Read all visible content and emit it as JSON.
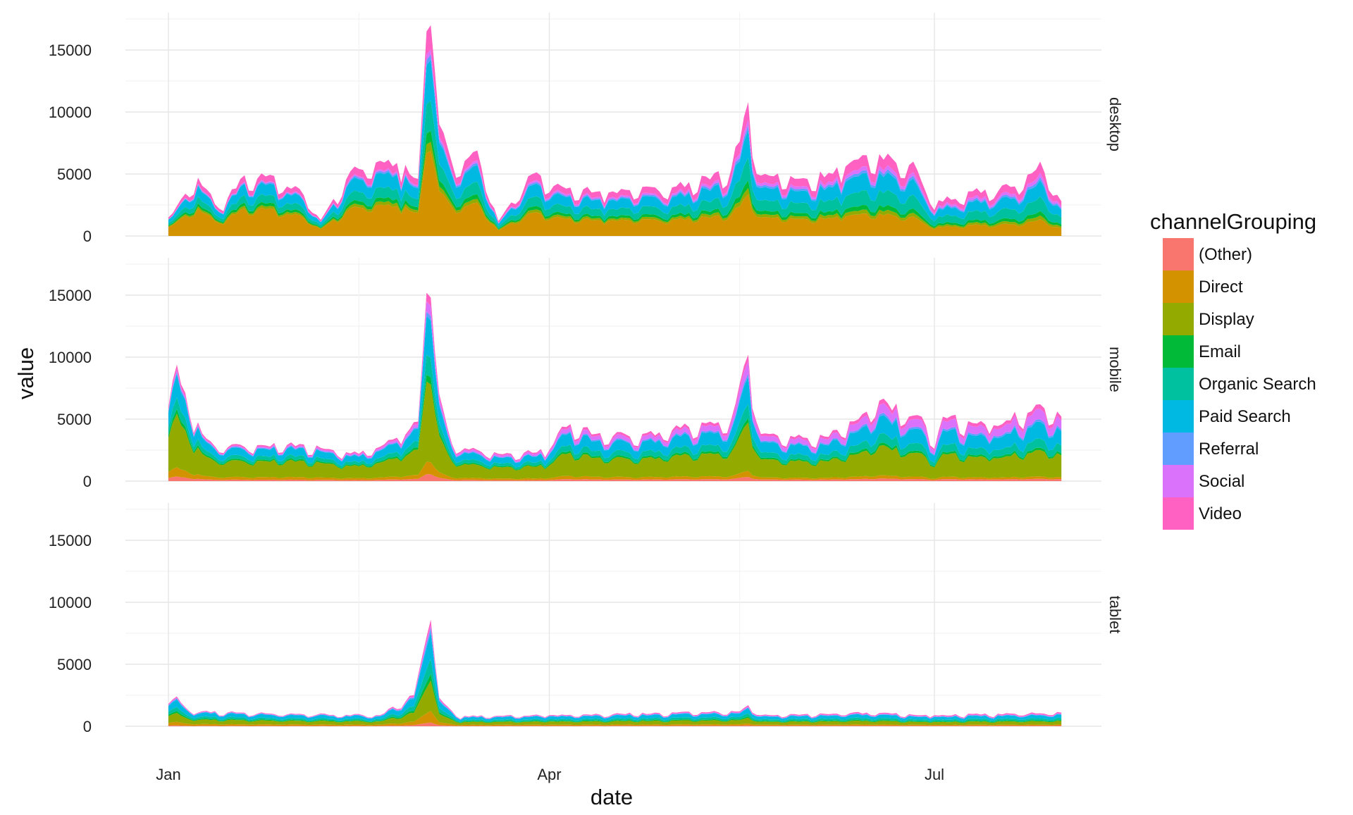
{
  "chart_data": {
    "type": "area",
    "stacked": true,
    "faceted": true,
    "xlabel": "date",
    "ylabel": "value",
    "x_ticks": [
      "Jan",
      "Apr",
      "Jul"
    ],
    "x_range": [
      "2017-01-01",
      "2017-08-01"
    ],
    "y_ticks": [
      0,
      5000,
      10000,
      15000
    ],
    "ylim": [
      0,
      17500
    ],
    "grid": true,
    "legend": {
      "title": "channelGrouping",
      "position": "right"
    },
    "series_colors": {
      "(Other)": "#F8766D",
      "Direct": "#D39200",
      "Display": "#93AA00",
      "Email": "#00BA38",
      "Organic Search": "#00C19F",
      "Paid Search": "#00B9E3",
      "Referral": "#619CFF",
      "Social": "#DB72FB",
      "Video": "#FF61C3"
    },
    "facets": [
      {
        "name": "desktop",
        "keypoints": [
          {
            "x": "2017-01-01",
            "total": 1500
          },
          {
            "x": "2017-01-08",
            "total": 4700
          },
          {
            "x": "2017-01-13",
            "total": 2200
          },
          {
            "x": "2017-01-18",
            "total": 4600
          },
          {
            "x": "2017-01-24",
            "total": 4800
          },
          {
            "x": "2017-02-01",
            "total": 3800
          },
          {
            "x": "2017-02-06",
            "total": 1300
          },
          {
            "x": "2017-02-14",
            "total": 5600
          },
          {
            "x": "2017-02-24",
            "total": 5900
          },
          {
            "x": "2017-03-01",
            "total": 4600
          },
          {
            "x": "2017-03-03",
            "total": 16500
          },
          {
            "x": "2017-03-04",
            "total": 17000
          },
          {
            "x": "2017-03-06",
            "total": 9000
          },
          {
            "x": "2017-03-09",
            "total": 5900
          },
          {
            "x": "2017-03-15",
            "total": 6900
          },
          {
            "x": "2017-03-20",
            "total": 1200
          },
          {
            "x": "2017-03-28",
            "total": 5000
          },
          {
            "x": "2017-04-04",
            "total": 4000
          },
          {
            "x": "2017-04-15",
            "total": 3500
          },
          {
            "x": "2017-05-01",
            "total": 4000
          },
          {
            "x": "2017-05-14",
            "total": 5400
          },
          {
            "x": "2017-05-18",
            "total": 10800
          },
          {
            "x": "2017-05-20",
            "total": 5000
          },
          {
            "x": "2017-06-01",
            "total": 4600
          },
          {
            "x": "2017-06-10",
            "total": 5600
          },
          {
            "x": "2017-06-18",
            "total": 6600
          },
          {
            "x": "2017-06-26",
            "total": 6000
          },
          {
            "x": "2017-06-30",
            "total": 2600
          },
          {
            "x": "2017-07-10",
            "total": 3600
          },
          {
            "x": "2017-07-20",
            "total": 4000
          },
          {
            "x": "2017-07-26",
            "total": 6000
          },
          {
            "x": "2017-07-31",
            "total": 2800
          }
        ],
        "mix_start": [
          0,
          48,
          4,
          5,
          12,
          18,
          2,
          1,
          10
        ],
        "mix_end": [
          0,
          22,
          5,
          6,
          20,
          22,
          4,
          6,
          15
        ]
      },
      {
        "name": "mobile",
        "keypoints": [
          {
            "x": "2017-01-01",
            "total": 6000
          },
          {
            "x": "2017-01-03",
            "total": 9400
          },
          {
            "x": "2017-01-06",
            "total": 5300
          },
          {
            "x": "2017-01-12",
            "total": 2800
          },
          {
            "x": "2017-02-01",
            "total": 3000
          },
          {
            "x": "2017-02-15",
            "total": 2200
          },
          {
            "x": "2017-02-24",
            "total": 3500
          },
          {
            "x": "2017-03-01",
            "total": 4800
          },
          {
            "x": "2017-03-03",
            "total": 15200
          },
          {
            "x": "2017-03-04",
            "total": 14800
          },
          {
            "x": "2017-03-06",
            "total": 7000
          },
          {
            "x": "2017-03-09",
            "total": 3000
          },
          {
            "x": "2017-03-20",
            "total": 2200
          },
          {
            "x": "2017-04-01",
            "total": 2500
          },
          {
            "x": "2017-04-04",
            "total": 4400
          },
          {
            "x": "2017-04-20",
            "total": 3600
          },
          {
            "x": "2017-05-14",
            "total": 5000
          },
          {
            "x": "2017-05-18",
            "total": 10200
          },
          {
            "x": "2017-05-21",
            "total": 3800
          },
          {
            "x": "2017-06-05",
            "total": 3600
          },
          {
            "x": "2017-06-15",
            "total": 5600
          },
          {
            "x": "2017-06-18",
            "total": 6500
          },
          {
            "x": "2017-06-28",
            "total": 5200
          },
          {
            "x": "2017-07-01",
            "total": 2600
          },
          {
            "x": "2017-07-03",
            "total": 5200
          },
          {
            "x": "2017-07-15",
            "total": 4500
          },
          {
            "x": "2017-07-26",
            "total": 6200
          },
          {
            "x": "2017-07-31",
            "total": 5200
          }
        ],
        "mix_start": [
          4,
          8,
          46,
          4,
          10,
          20,
          2,
          2,
          4
        ],
        "mix_end": [
          3,
          3,
          34,
          3,
          12,
          22,
          3,
          14,
          6
        ]
      },
      {
        "name": "tablet",
        "keypoints": [
          {
            "x": "2017-01-01",
            "total": 1800
          },
          {
            "x": "2017-01-03",
            "total": 2400
          },
          {
            "x": "2017-01-06",
            "total": 1200
          },
          {
            "x": "2017-02-01",
            "total": 1000
          },
          {
            "x": "2017-02-20",
            "total": 900
          },
          {
            "x": "2017-02-28",
            "total": 2500
          },
          {
            "x": "2017-03-03",
            "total": 7200
          },
          {
            "x": "2017-03-04",
            "total": 8600
          },
          {
            "x": "2017-03-06",
            "total": 2300
          },
          {
            "x": "2017-03-10",
            "total": 800
          },
          {
            "x": "2017-04-01",
            "total": 900
          },
          {
            "x": "2017-05-16",
            "total": 1200
          },
          {
            "x": "2017-05-18",
            "total": 1700
          },
          {
            "x": "2017-05-21",
            "total": 900
          },
          {
            "x": "2017-06-15",
            "total": 1100
          },
          {
            "x": "2017-07-01",
            "total": 900
          },
          {
            "x": "2017-07-31",
            "total": 1100
          }
        ],
        "mix_start": [
          3,
          12,
          30,
          6,
          14,
          25,
          4,
          2,
          4
        ],
        "mix_end": [
          5,
          8,
          25,
          6,
          16,
          24,
          4,
          4,
          8
        ]
      }
    ]
  },
  "texts": {
    "ylabel": "value",
    "xlabel": "date",
    "legend_title": "channelGrouping",
    "series_names": [
      "(Other)",
      "Direct",
      "Display",
      "Email",
      "Organic Search",
      "Paid Search",
      "Referral",
      "Social",
      "Video"
    ],
    "x_tick_labels": [
      "Jan",
      "Apr",
      "Jul"
    ],
    "y_tick_labels": [
      "0",
      "5000",
      "10000",
      "15000"
    ],
    "facet_labels": [
      "desktop",
      "mobile",
      "tablet"
    ]
  }
}
